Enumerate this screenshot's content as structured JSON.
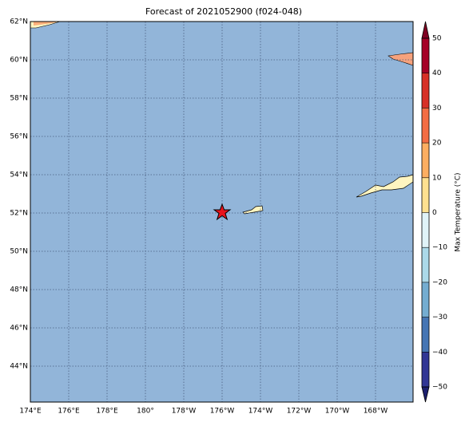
{
  "title": "Forecast of 2021052900 (f024-048)",
  "map": {
    "lat_labels": [
      "62°N",
      "60°N",
      "58°N",
      "56°N",
      "54°N",
      "52°N",
      "50°N",
      "48°N",
      "46°N",
      "44°N"
    ],
    "lon_labels": [
      "174°E",
      "176°E",
      "178°E",
      "180°",
      "178°W",
      "176°W",
      "174°W",
      "172°W",
      "170°W",
      "168°W"
    ]
  },
  "colorbar": {
    "label": "Max Temperature (°C)",
    "ticks": [
      "50",
      "40",
      "30",
      "20",
      "10",
      "0",
      "−10",
      "−20",
      "−30",
      "−40",
      "−50"
    ]
  }
}
